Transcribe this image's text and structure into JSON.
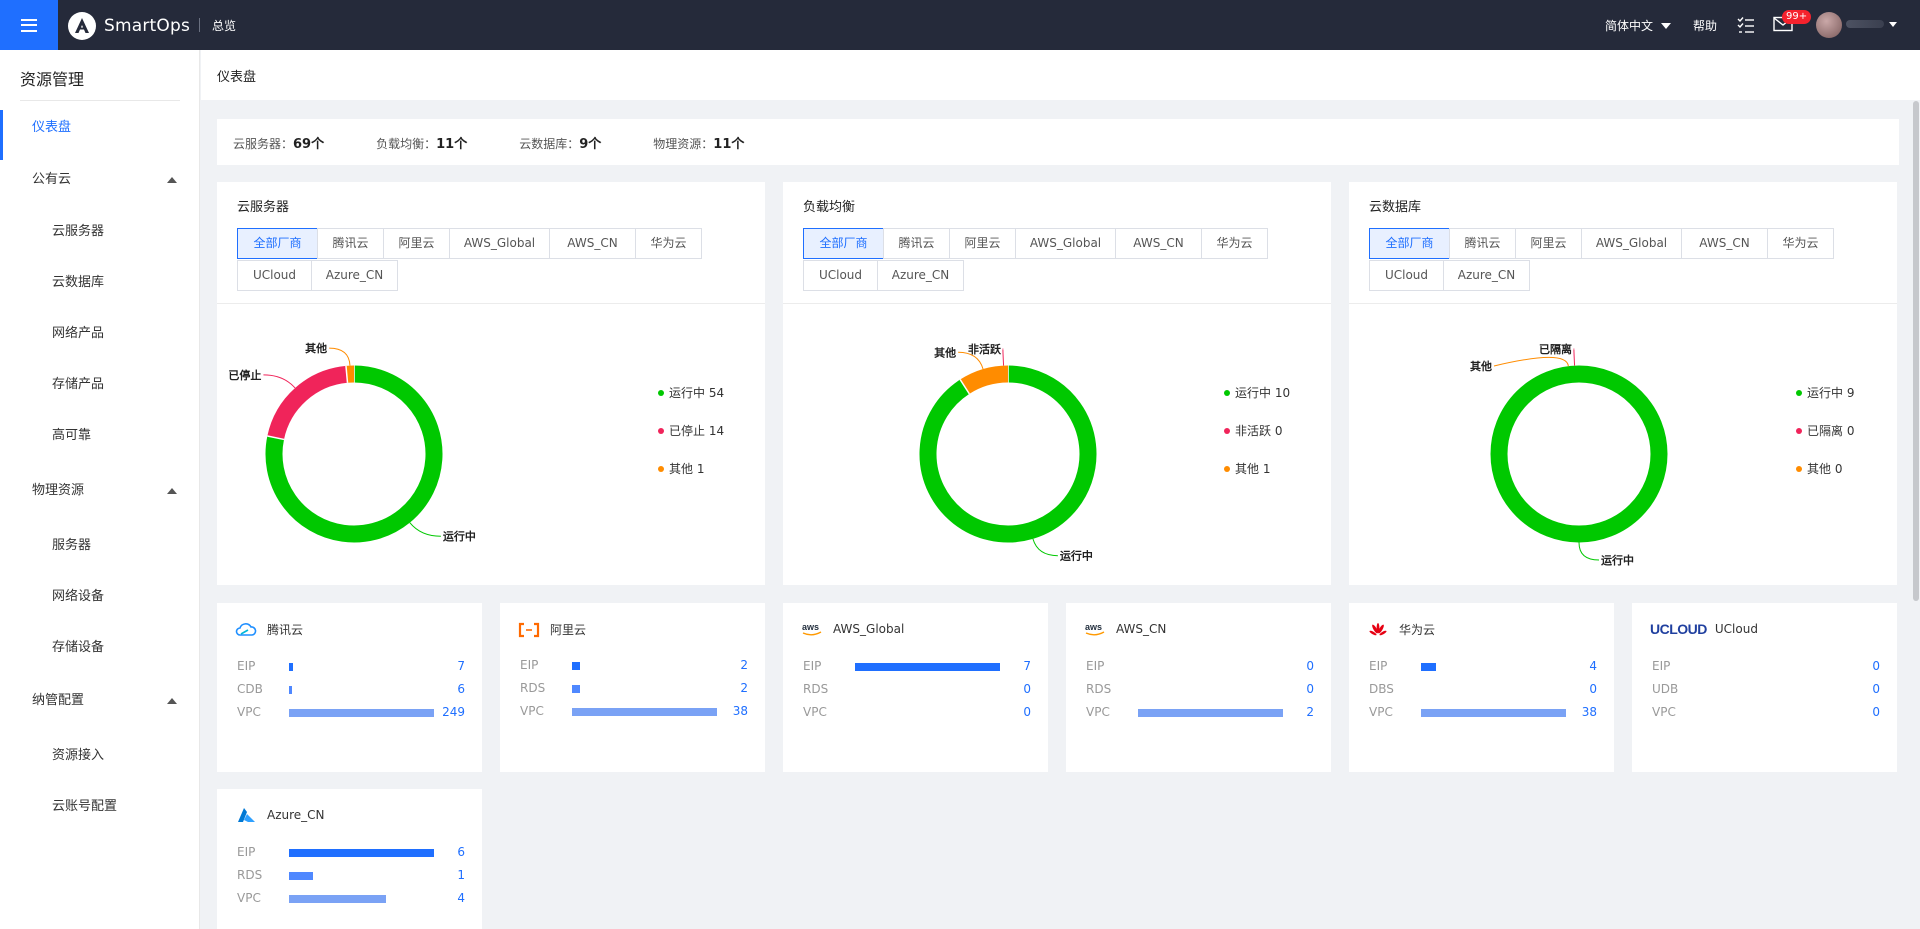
{
  "app": {
    "name": "SmartOps",
    "nav_overview": "总览"
  },
  "header": {
    "language": "简体中文",
    "help": "帮助",
    "notification_count": "99+"
  },
  "colors": {
    "brand": "#1f6fff",
    "header_bg": "#252a3a",
    "green": "#00c800",
    "red": "#f0245a",
    "orange": "#ff8c00"
  },
  "sidebar": {
    "title": "资源管理",
    "dashboard": "仪表盘",
    "groups": [
      {
        "label": "公有云",
        "items": [
          "云服务器",
          "云数据库",
          "网络产品",
          "存储产品",
          "高可靠"
        ]
      },
      {
        "label": "物理资源",
        "items": [
          "服务器",
          "网络设备",
          "存储设备"
        ]
      },
      {
        "label": "纳管配置",
        "items": [
          "资源接入",
          "云账号配置"
        ]
      }
    ]
  },
  "page": {
    "title": "仪表盘"
  },
  "summary": [
    {
      "label": "云服务器：",
      "value": "69个"
    },
    {
      "label": "负载均衡：",
      "value": "11个"
    },
    {
      "label": "云数据库：",
      "value": "9个"
    },
    {
      "label": "物理资源：",
      "value": "11个"
    }
  ],
  "vendor_tabs": [
    "全部厂商",
    "腾讯云",
    "阿里云",
    "AWS_Global",
    "AWS_CN",
    "华为云",
    "UCloud",
    "Azure_CN"
  ],
  "panels": [
    {
      "title": "云服务器",
      "slices": [
        {
          "name": "运行中",
          "value": 54,
          "color": "#00c800"
        },
        {
          "name": "已停止",
          "value": 14,
          "color": "#f0245a"
        },
        {
          "name": "其他",
          "value": 1,
          "color": "#ff8c00"
        }
      ],
      "legend": [
        "运行中 54",
        "已停止 14",
        "其他 1"
      ]
    },
    {
      "title": "负载均衡",
      "slices": [
        {
          "name": "运行中",
          "value": 10,
          "color": "#00c800"
        },
        {
          "name": "非活跃",
          "value": 0,
          "color": "#f0245a"
        },
        {
          "name": "其他",
          "value": 1,
          "color": "#ff8c00"
        }
      ],
      "legend": [
        "运行中 10",
        "非活跃 0",
        "其他 1"
      ]
    },
    {
      "title": "云数据库",
      "slices": [
        {
          "name": "运行中",
          "value": 9,
          "color": "#00c800"
        },
        {
          "name": "已隔离",
          "value": 0,
          "color": "#f0245a"
        },
        {
          "name": "其他",
          "value": 0,
          "color": "#ff8c00"
        }
      ],
      "legend": [
        "运行中 9",
        "已隔离 0",
        "其他 0"
      ]
    }
  ],
  "vendors": [
    {
      "name": "腾讯云",
      "icon": "tencent-cloud-icon",
      "rows": [
        {
          "label": "EIP",
          "value": 7
        },
        {
          "label": "CDB",
          "value": 6
        },
        {
          "label": "VPC",
          "value": 249
        }
      ]
    },
    {
      "name": "阿里云",
      "icon": "aliyun-icon",
      "rows": [
        {
          "label": "EIP",
          "value": 2
        },
        {
          "label": "RDS",
          "value": 2
        },
        {
          "label": "VPC",
          "value": 38
        }
      ]
    },
    {
      "name": "AWS_Global",
      "icon": "aws-icon",
      "rows": [
        {
          "label": "EIP",
          "value": 7
        },
        {
          "label": "RDS",
          "value": 0
        },
        {
          "label": "VPC",
          "value": 0
        }
      ]
    },
    {
      "name": "AWS_CN",
      "icon": "aws-icon",
      "rows": [
        {
          "label": "EIP",
          "value": 0
        },
        {
          "label": "RDS",
          "value": 0
        },
        {
          "label": "VPC",
          "value": 2
        }
      ]
    },
    {
      "name": "华为云",
      "icon": "huawei-icon",
      "rows": [
        {
          "label": "EIP",
          "value": 4
        },
        {
          "label": "DBS",
          "value": 0
        },
        {
          "label": "VPC",
          "value": 38
        }
      ]
    },
    {
      "name": "UCloud",
      "icon": "ucloud-icon",
      "logo_text": "UCLOUD",
      "rows": [
        {
          "label": "EIP",
          "value": 0
        },
        {
          "label": "UDB",
          "value": 0
        },
        {
          "label": "VPC",
          "value": 0
        }
      ]
    },
    {
      "name": "Azure_CN",
      "icon": "azure-icon",
      "rows": [
        {
          "label": "EIP",
          "value": 6
        },
        {
          "label": "RDS",
          "value": 1
        },
        {
          "label": "VPC",
          "value": 4
        }
      ]
    }
  ],
  "aws_logo_text": "aws"
}
